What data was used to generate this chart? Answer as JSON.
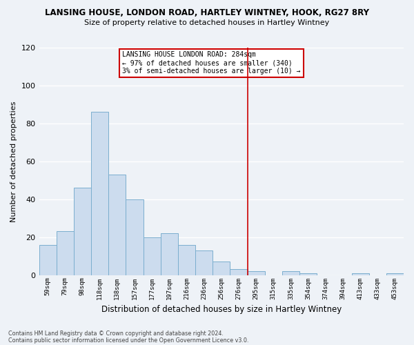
{
  "title": "LANSING HOUSE, LONDON ROAD, HARTLEY WINTNEY, HOOK, RG27 8RY",
  "subtitle": "Size of property relative to detached houses in Hartley Wintney",
  "xlabel": "Distribution of detached houses by size in Hartley Wintney",
  "ylabel": "Number of detached properties",
  "bar_labels": [
    "59sqm",
    "79sqm",
    "98sqm",
    "118sqm",
    "138sqm",
    "157sqm",
    "177sqm",
    "197sqm",
    "216sqm",
    "236sqm",
    "256sqm",
    "276sqm",
    "295sqm",
    "315sqm",
    "335sqm",
    "354sqm",
    "374sqm",
    "394sqm",
    "413sqm",
    "433sqm",
    "453sqm"
  ],
  "bar_heights": [
    16,
    23,
    46,
    86,
    53,
    40,
    20,
    22,
    16,
    13,
    7,
    3,
    2,
    0,
    2,
    1,
    0,
    0,
    1,
    0,
    1
  ],
  "bar_color": "#ccdcee",
  "bar_edge_color": "#7aaece",
  "vline_x": 12.0,
  "vline_color": "#cc0000",
  "ylim": [
    0,
    120
  ],
  "yticks": [
    0,
    20,
    40,
    60,
    80,
    100,
    120
  ],
  "annotation_title": "LANSING HOUSE LONDON ROAD: 284sqm",
  "annotation_line1": "← 97% of detached houses are smaller (340)",
  "annotation_line2": "3% of semi-detached houses are larger (10) →",
  "footer1": "Contains HM Land Registry data © Crown copyright and database right 2024.",
  "footer2": "Contains public sector information licensed under the Open Government Licence v3.0.",
  "background_color": "#eef2f7",
  "grid_color": "#ffffff"
}
